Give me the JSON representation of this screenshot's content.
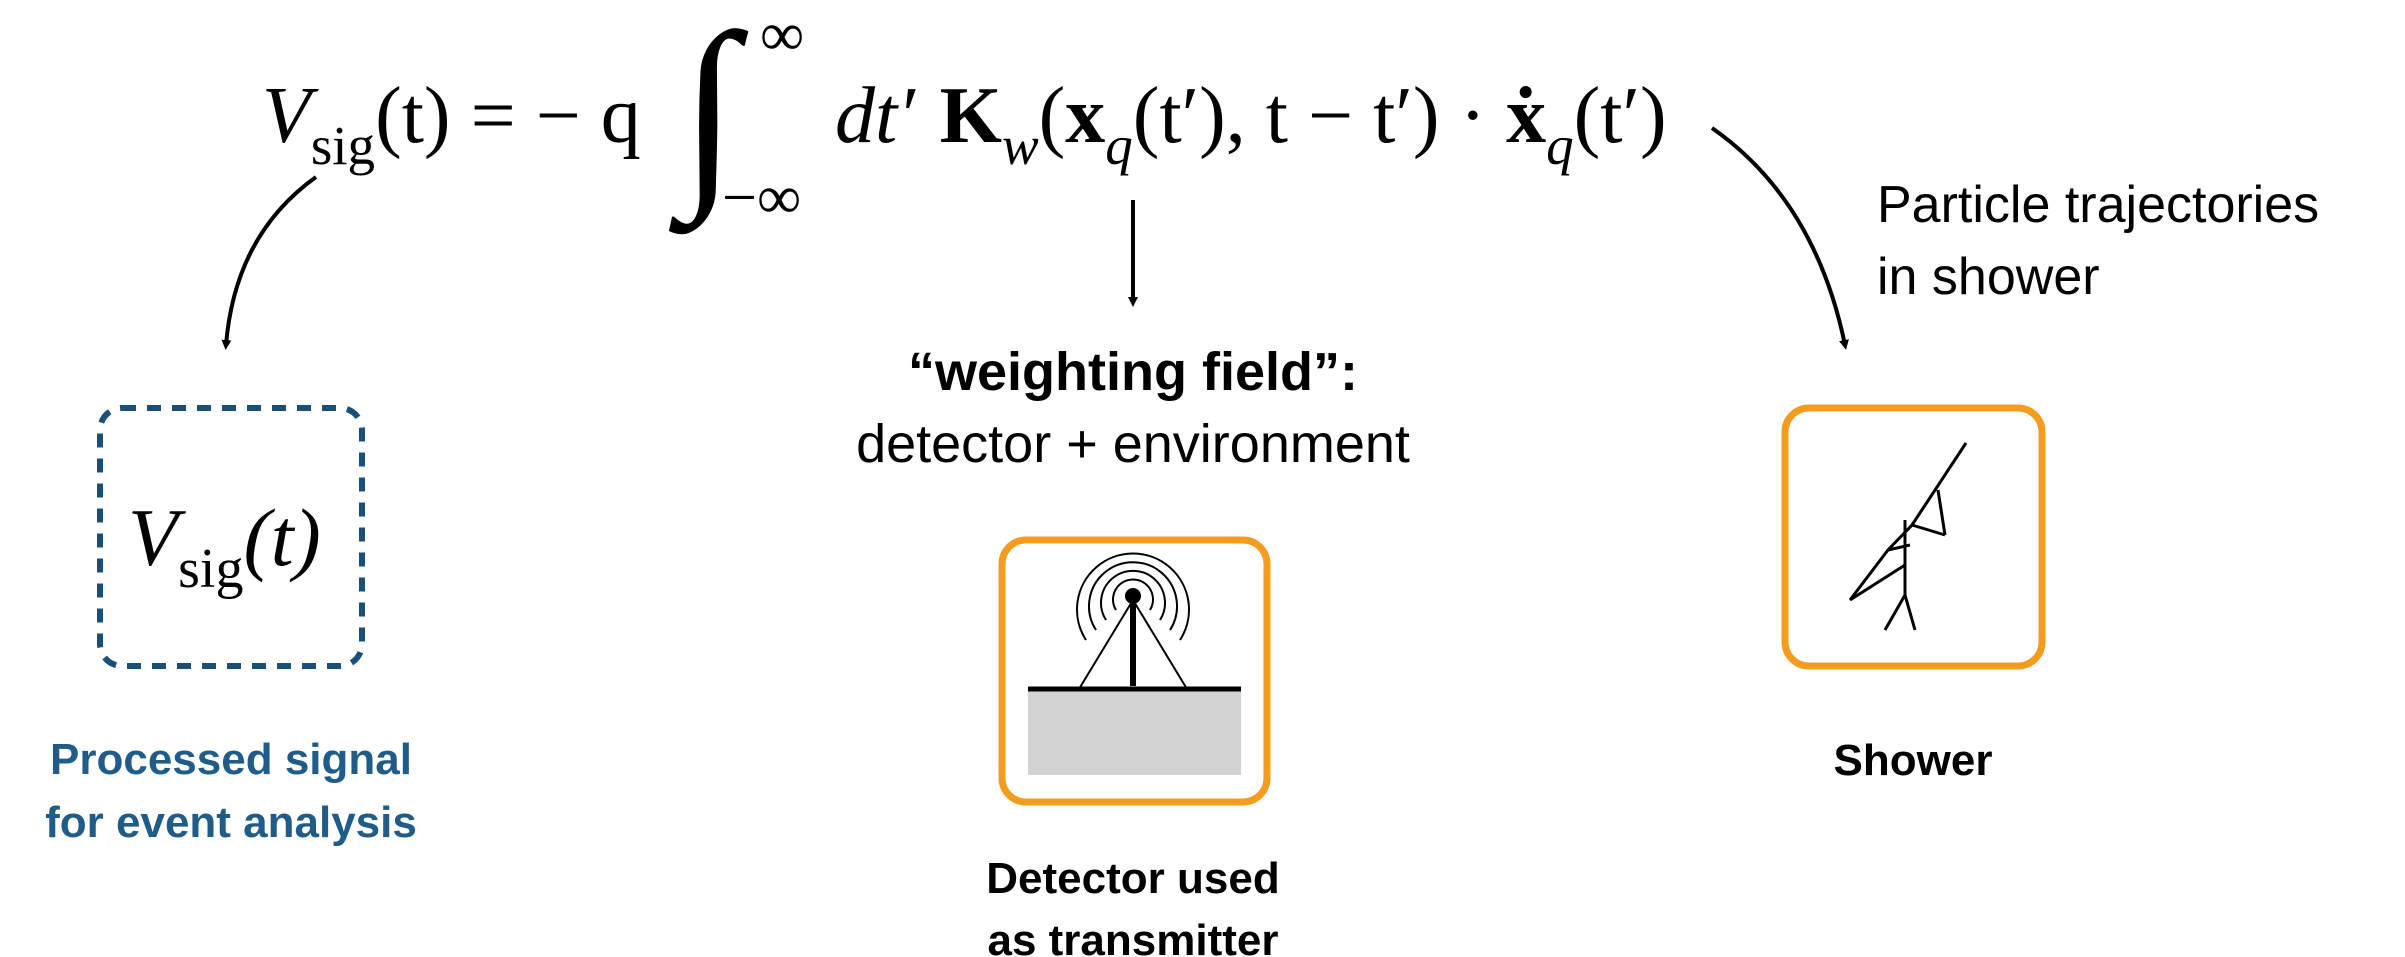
{
  "equation": {
    "v": "V",
    "sig": "sig",
    "lhs_rest": "(t) = − q",
    "integral": "∫",
    "upper": "∞",
    "lower": "−∞",
    "dt": "dt′",
    "k": "K",
    "w": "w",
    "open": "(",
    "x": "x",
    "q1": "q",
    "mid": "(t′), t − t′) · ",
    "xdot": "ẋ",
    "q2": "q",
    "end": "(t′)"
  },
  "signal": {
    "v": "V",
    "sig": "sig",
    "arg": "(t)",
    "caption": [
      "Processed signal",
      "for event analysis"
    ]
  },
  "weighting": {
    "title": "“weighting field”:",
    "subtitle": "detector + environment",
    "caption": [
      "Detector used",
      "as transmitter"
    ]
  },
  "shower": {
    "note": [
      "Particle trajectories",
      "in shower"
    ],
    "caption": "Shower"
  }
}
